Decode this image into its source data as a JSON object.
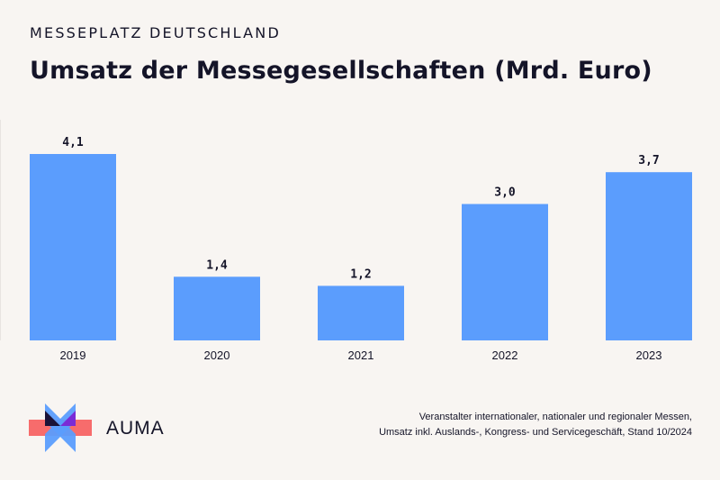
{
  "header": {
    "kicker": "MESSEPLATZ DEUTSCHLAND",
    "title": "Umsatz der Messegesellschaften (Mrd. Euro)"
  },
  "chart_data": {
    "type": "bar",
    "categories": [
      "2019",
      "2020",
      "2021",
      "2022",
      "2023"
    ],
    "values": [
      4.1,
      1.4,
      1.2,
      3.0,
      3.7
    ],
    "value_labels": [
      "4,1",
      "1,4",
      "1,2",
      "3,0",
      "3,7"
    ],
    "ylim": [
      0,
      4.1
    ],
    "bar_color": "#5b9dfd",
    "grid": false,
    "legend": "none"
  },
  "footer": {
    "logo_text": "AUMA",
    "source_line1": "Veranstalter internationaler, nationaler und regionaler Messen,",
    "source_line2": "Umsatz inkl. Auslands-, Kongress- und Servicegeschäft, Stand 10/2024"
  },
  "colors": {
    "background": "#f8f5f2",
    "text": "#141428",
    "logo_coral": "#f76c6c",
    "logo_blue": "#5b9dfd",
    "logo_purple": "#7a2bd6",
    "logo_navy": "#1a1238"
  }
}
